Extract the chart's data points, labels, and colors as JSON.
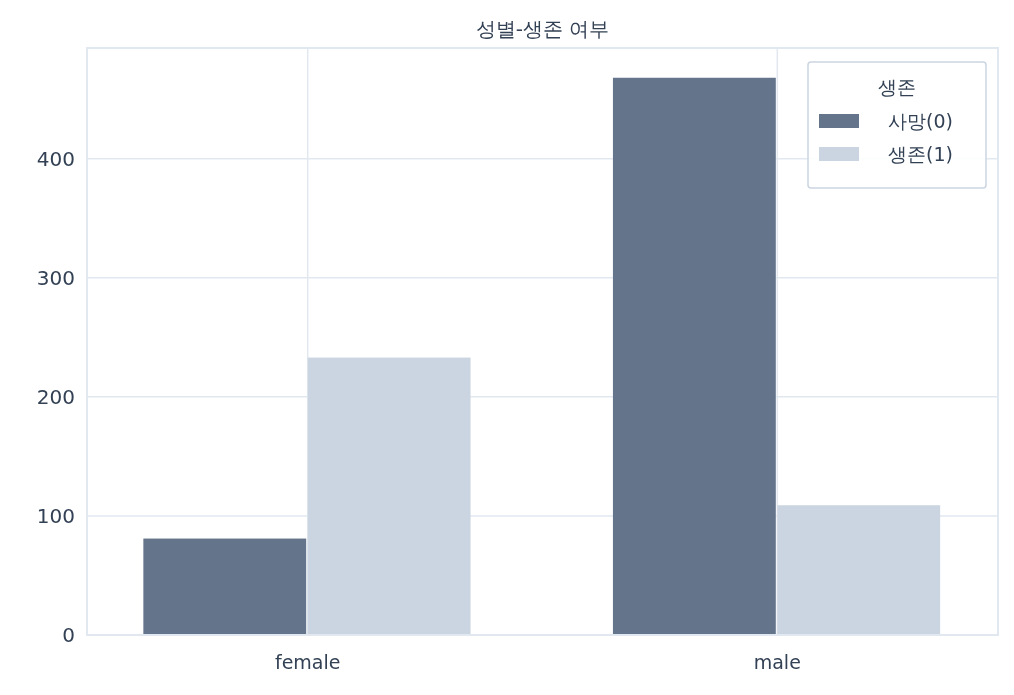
{
  "chart_data": {
    "type": "bar",
    "title": "성별-생존 여부",
    "categories": [
      "female",
      "male"
    ],
    "series": [
      {
        "name": "사망(0)",
        "color": "#64748b",
        "values": [
          81,
          468
        ]
      },
      {
        "name": "생존(1)",
        "color": "#cbd5e1",
        "values": [
          233,
          109
        ]
      }
    ],
    "ylim": [
      0,
      493
    ],
    "yticks": [
      0,
      100,
      200,
      300,
      400
    ],
    "grid": true,
    "legend": "top right",
    "legend_title": "생존"
  }
}
